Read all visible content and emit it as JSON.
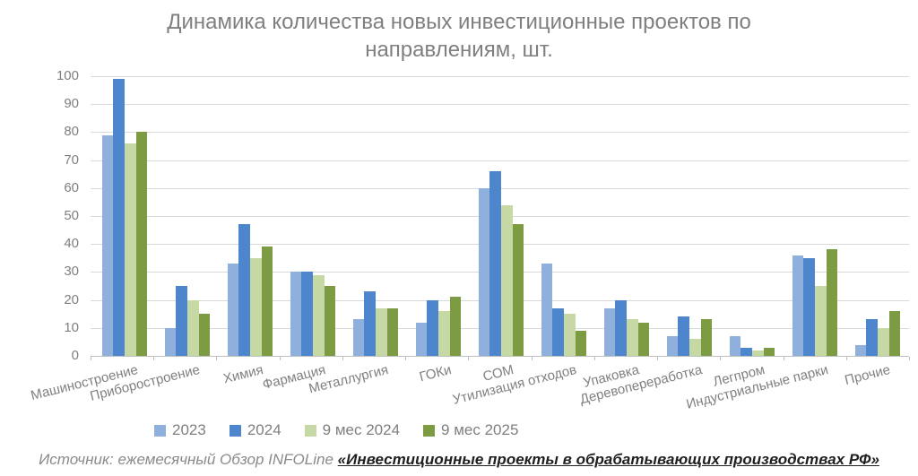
{
  "chart_data": {
    "type": "bar",
    "title": "Динамика количества новых инвестиционные проектов по направлениям, шт.",
    "title_color": "#7f7f7f",
    "categories": [
      "Машиностроение",
      "Приборостроение",
      "Химия",
      "Фармация",
      "Металлургия",
      "ГОКи",
      "СОМ",
      "Утилизация отходов",
      "Упаковка",
      "Деревопереработка",
      "Легпром",
      "Индустриальные парки",
      "Прочие"
    ],
    "series": [
      {
        "name": "2023",
        "color": "#8FAFDC",
        "values": [
          79,
          10,
          33,
          30,
          13,
          12,
          60,
          33,
          17,
          7,
          7,
          36,
          4
        ]
      },
      {
        "name": "2024",
        "color": "#4E86CE",
        "values": [
          99,
          25,
          47,
          30,
          23,
          20,
          66,
          17,
          20,
          14,
          3,
          35,
          13
        ]
      },
      {
        "name": "9 мес 2024",
        "color": "#C6D9A4",
        "values": [
          76,
          20,
          35,
          29,
          17,
          16,
          54,
          15,
          13,
          6,
          2,
          25,
          10
        ]
      },
      {
        "name": "9 мес 2025",
        "color": "#7C9B43",
        "values": [
          80,
          15,
          39,
          25,
          17,
          21,
          47,
          9,
          12,
          13,
          3,
          38,
          16
        ]
      }
    ],
    "ylim": [
      0,
      100
    ],
    "ytick_step": 10,
    "xlabel": "",
    "ylabel": "",
    "grid": true,
    "grid_color": "#d9d9d9",
    "axis_color": "#bfbfbf",
    "label_color": "#808080",
    "legend_position": "bottom"
  },
  "footer": {
    "prefix": "Источник: ежемесячный Обзор INFOLine ",
    "link_text": "«Инвестиционные проекты в обрабатывающих производствах РФ»"
  }
}
